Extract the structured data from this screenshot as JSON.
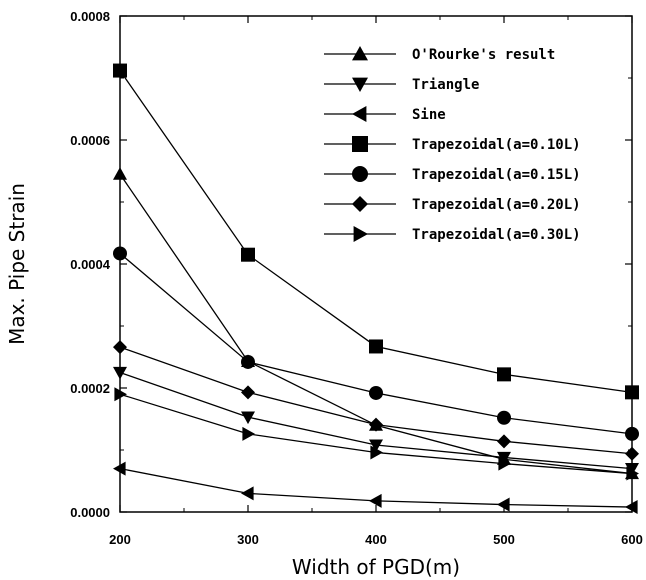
{
  "chart_data": {
    "type": "line",
    "xlabel": "Width of PGD(m)",
    "ylabel": "Max. Pipe Strain",
    "x": [
      200,
      300,
      400,
      500,
      600
    ],
    "xlim": [
      200,
      600
    ],
    "ylim": [
      0,
      0.0008
    ],
    "xticks": [
      "200",
      "300",
      "400",
      "500",
      "600"
    ],
    "yticks": [
      "0.0000",
      "0.0002",
      "0.0004",
      "0.0006",
      "0.0008"
    ],
    "ytick_values": [
      0,
      0.0002,
      0.0004,
      0.0006,
      0.0008
    ],
    "grid": false,
    "legend_position": "top-right",
    "series": [
      {
        "name": "O'Rourke's result",
        "marker": "triangle-up",
        "values": [
          0.000545,
          0.000243,
          0.00014,
          8.5e-05,
          6.2e-05
        ]
      },
      {
        "name": "Triangle",
        "marker": "triangle-down",
        "values": [
          0.000225,
          0.000153,
          0.000108,
          8.8e-05,
          7e-05
        ]
      },
      {
        "name": "Sine",
        "marker": "triangle-left",
        "values": [
          7e-05,
          3e-05,
          1.8e-05,
          1.2e-05,
          8e-06
        ]
      },
      {
        "name": "Trapezoidal(a=0.10L)",
        "marker": "square",
        "values": [
          0.000712,
          0.000415,
          0.000267,
          0.000222,
          0.000193
        ]
      },
      {
        "name": "Trapezoidal(a=0.15L)",
        "marker": "circle",
        "values": [
          0.000417,
          0.000242,
          0.000192,
          0.000152,
          0.000126
        ]
      },
      {
        "name": "Trapezoidal(a=0.20L)",
        "marker": "diamond",
        "values": [
          0.000266,
          0.000193,
          0.000141,
          0.000114,
          9.4e-05
        ]
      },
      {
        "name": "Trapezoidal(a=0.30L)",
        "marker": "triangle-right",
        "values": [
          0.00019,
          0.000126,
          9.6e-05,
          7.8e-05,
          6.2e-05
        ]
      }
    ]
  }
}
